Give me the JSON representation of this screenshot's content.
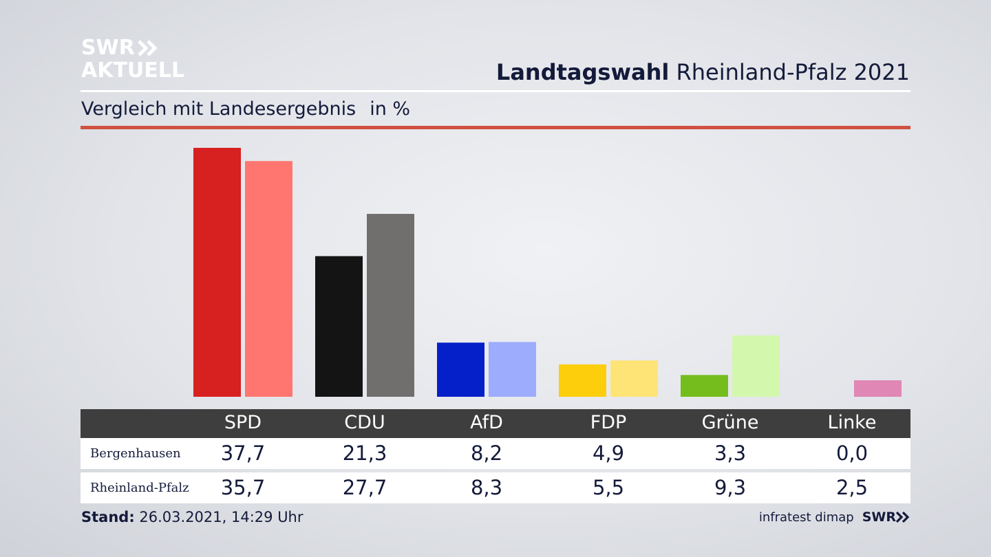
{
  "brand": {
    "line1": "SWR",
    "line2": "AKTUELL"
  },
  "header": {
    "title_bold": "Landtagswahl",
    "title_rest": "Rheinland-Pfalz 2021"
  },
  "subheader": {
    "title": "Vergleich mit Landesergebnis",
    "unit": "in %"
  },
  "colors": {
    "accent_rule": "#d1503f",
    "table_header": "#3e3e3e"
  },
  "chart_data": {
    "type": "bar",
    "categories": [
      "SPD",
      "CDU",
      "AfD",
      "FDP",
      "Grüne",
      "Linke"
    ],
    "series": [
      {
        "name": "Bergenhausen",
        "values": [
          37.7,
          21.3,
          8.2,
          4.9,
          3.3,
          0.0
        ],
        "colors": [
          "#d72020",
          "#141414",
          "#0520c8",
          "#fdce0b",
          "#75bd1c",
          "#e8a0c0"
        ]
      },
      {
        "name": "Rheinland-Pfalz",
        "values": [
          35.7,
          27.7,
          8.3,
          5.5,
          9.3,
          2.5
        ],
        "colors": [
          "#ff7670",
          "#706f6e",
          "#9eacfd",
          "#fee476",
          "#d4f7ae",
          "#e087b6"
        ]
      }
    ],
    "labels": {
      "Bergenhausen": [
        "37,7",
        "21,3",
        "8,2",
        "4,9",
        "3,3",
        "0,0"
      ],
      "Rheinland-Pfalz": [
        "35,7",
        "27,7",
        "8,3",
        "5,5",
        "9,3",
        "2,5"
      ]
    },
    "ylim": [
      0,
      37.7
    ],
    "grid": false
  },
  "footer": {
    "stand_label": "Stand:",
    "stand_value": "26.03.2021, 14:29 Uhr",
    "source": "infratest dimap",
    "source_brand": "SWR"
  }
}
